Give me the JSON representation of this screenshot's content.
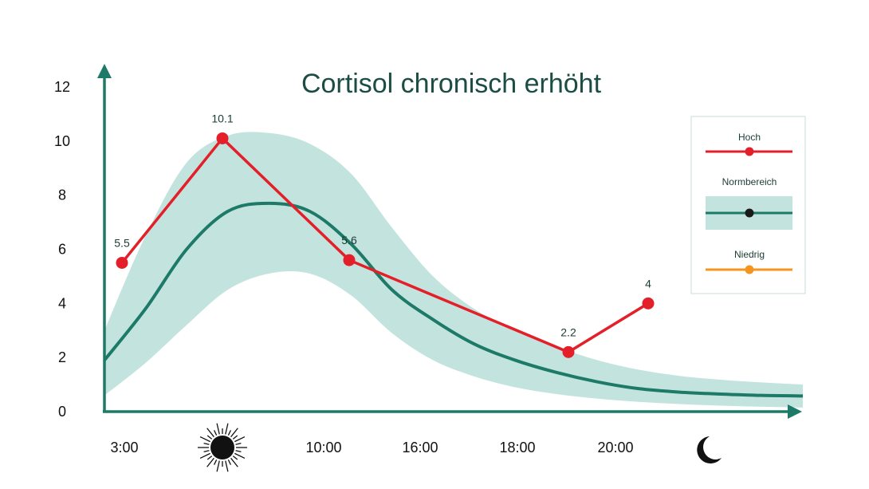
{
  "chart_data": {
    "type": "line",
    "title": "Cortisol chronisch erhöht",
    "xlabel": "",
    "ylabel": "",
    "ylim": [
      0,
      12
    ],
    "yticks": [
      "0",
      "2",
      "4",
      "6",
      "8",
      "10",
      "12"
    ],
    "xticks": [
      "3:00",
      "sun-icon",
      "10:00",
      "16:00",
      "18:00",
      "20:00",
      "moon-icon"
    ],
    "series": [
      {
        "name": "Hoch",
        "color": "#e3202a",
        "points": [
          {
            "x": "3:00",
            "y": 5.5,
            "label": "5.5"
          },
          {
            "x": "sun-icon",
            "y": 10.1,
            "label": "10.1"
          },
          {
            "x": "10:00",
            "y": 5.6,
            "label": "5.6"
          },
          {
            "x": "18:00–20:00",
            "y": 2.2,
            "label": "2.2"
          },
          {
            "x": "20:00",
            "y": 4,
            "label": "4"
          }
        ]
      }
    ],
    "normbereich": {
      "name": "Normbereich",
      "line_color": "#1e7a68",
      "band_color": "#c3e4de",
      "center": [
        1.9,
        3.8,
        6.0,
        7.4,
        7.7,
        7.4,
        6.2,
        4.5,
        3.4,
        2.5,
        1.9,
        1.45,
        1.1,
        0.85,
        0.72,
        0.65,
        0.6,
        0.58
      ],
      "upper": [
        3.0,
        6.5,
        9.2,
        10.2,
        10.3,
        9.9,
        8.8,
        6.8,
        5.0,
        3.8,
        3.0,
        2.4,
        1.9,
        1.55,
        1.32,
        1.18,
        1.08,
        1.0
      ],
      "lower": [
        0.6,
        1.8,
        3.2,
        4.5,
        5.1,
        5.1,
        4.3,
        2.9,
        1.9,
        1.3,
        0.9,
        0.65,
        0.48,
        0.36,
        0.28,
        0.22,
        0.18,
        0.15
      ]
    },
    "legend": {
      "placement": "top-right",
      "items": [
        {
          "label": "Hoch",
          "color": "#e3202a",
          "dot": "#e3202a"
        },
        {
          "label": "Normbereich",
          "color": "#1e7a68",
          "dot": "#1a1a1a",
          "band": "#c3e4de"
        },
        {
          "label": "Niedrig",
          "color": "#f7941d",
          "dot": "#f7941d"
        }
      ]
    },
    "colors": {
      "axis": "#1e7a68",
      "title": "#1b4d44"
    }
  }
}
